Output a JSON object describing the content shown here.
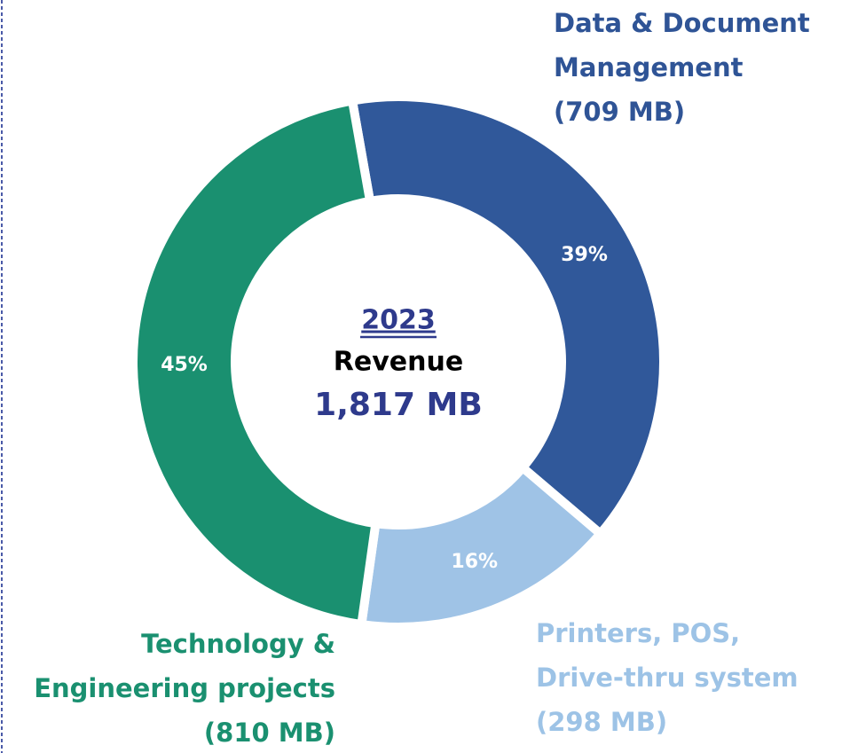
{
  "chart_data": {
    "type": "donut",
    "categories": [
      [
        "Data & Document",
        "Management"
      ],
      [
        "Printers, POS,",
        "Drive-thru system"
      ],
      [
        "Technology &",
        "Engineering projects"
      ]
    ],
    "values": [
      39,
      16,
      45
    ],
    "value_labels": [
      "39%",
      "16%",
      "45%"
    ],
    "amount_labels": [
      "(709 MB)",
      "(298 MB)",
      "(810 MB)"
    ],
    "colors": [
      "#30589a",
      "#9fc3e6",
      "#1a9070"
    ],
    "label_colors": [
      "#2f5496",
      "#9dc3e6",
      "#1a9070"
    ],
    "center": {
      "year": "2023",
      "label": "Revenue",
      "total_label": "1,817 MB"
    }
  }
}
